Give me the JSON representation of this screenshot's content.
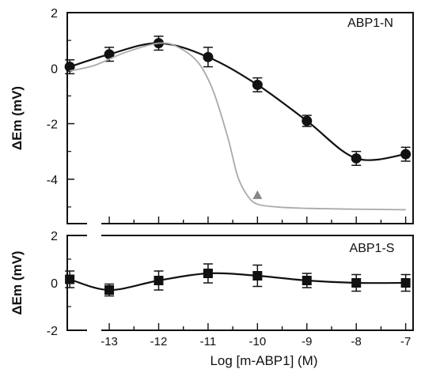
{
  "chart_data": [
    {
      "type": "line",
      "panel": "top",
      "label": "ABP1-N",
      "ylabel": "ΔEm (mV)",
      "ylim": [
        -5.6,
        2.0
      ],
      "yticks": [
        2,
        0,
        -2,
        -4
      ],
      "xlim": [
        -13.85,
        -6.85
      ],
      "grid": false,
      "series": [
        {
          "name": "ABP1-N",
          "x": [
            -13.8,
            -13.0,
            -12.0,
            -11.0,
            -10.0,
            -9.0,
            -8.0,
            -7.0
          ],
          "y": [
            0.05,
            0.5,
            0.9,
            0.4,
            -0.6,
            -1.9,
            -3.25,
            -3.1
          ],
          "err": [
            0.25,
            0.25,
            0.25,
            0.35,
            0.25,
            0.2,
            0.25,
            0.25
          ],
          "color": "#111111"
        },
        {
          "x": [
            -13.8,
            -13.3,
            -12.7,
            -12.0,
            -11.6,
            -11.2,
            -10.9,
            -10.6,
            -10.4,
            -10.2,
            -10.0,
            -9.6,
            -9.0,
            -8.0,
            -7.0
          ],
          "y": [
            -0.1,
            0.1,
            0.55,
            0.9,
            0.75,
            0.2,
            -0.8,
            -2.5,
            -3.9,
            -4.6,
            -4.9,
            -5.0,
            -5.05,
            -5.08,
            -5.1
          ],
          "color": "#aaaaaa"
        }
      ],
      "marker": {
        "shape": "triangle",
        "x": -10.0,
        "y": -4.6,
        "color": "#888888"
      }
    },
    {
      "type": "line",
      "panel": "bottom",
      "label": "ABP1-S",
      "ylabel": "ΔEm (mV)",
      "ylim": [
        -2.0,
        2.0
      ],
      "yticks": [
        2,
        0,
        -2
      ],
      "xlim": [
        -13.85,
        -6.85
      ],
      "xlabel": "Log [m-ABP1] (M)",
      "xticks": [
        -13,
        -12,
        -11,
        -10,
        -9,
        -8,
        -7
      ],
      "xtick_labels": [
        "-13",
        "-12",
        "-11",
        "-10",
        "-9",
        "-8",
        "-7"
      ],
      "grid": false,
      "series": [
        {
          "name": "ABP1-S",
          "x": [
            -13.8,
            -13.0,
            -12.0,
            -11.0,
            -10.0,
            -9.0,
            -8.0,
            -7.0
          ],
          "y": [
            0.15,
            -0.3,
            0.1,
            0.4,
            0.3,
            0.1,
            0.0,
            0.0
          ],
          "err": [
            0.35,
            0.25,
            0.4,
            0.4,
            0.45,
            0.3,
            0.35,
            0.35
          ],
          "color": "#111111"
        }
      ]
    }
  ]
}
